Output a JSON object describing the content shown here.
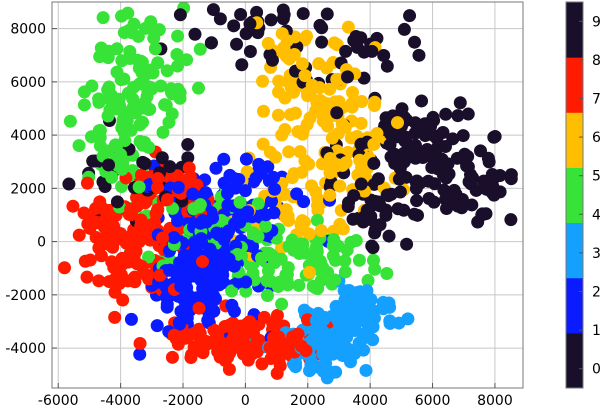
{
  "chart_data": {
    "type": "scatter",
    "title": "",
    "xlabel": "",
    "ylabel": "",
    "xlim": [
      -6200,
      8900
    ],
    "ylim": [
      -5500,
      9000
    ],
    "x_ticks": [
      -6000,
      -4000,
      -2000,
      0,
      2000,
      4000,
      6000,
      8000
    ],
    "y_ticks": [
      -4000,
      -2000,
      0,
      2000,
      4000,
      6000,
      8000
    ],
    "x_tick_labels": [
      "-6000",
      "-4000",
      "-2000",
      "0",
      "2000",
      "4000",
      "6000",
      "8000"
    ],
    "y_tick_labels": [
      "-4000",
      "-2000",
      "0",
      "2000",
      "4000",
      "6000",
      "8000"
    ],
    "grid": true,
    "colorbar": {
      "labels": [
        "0",
        "1",
        "2",
        "3",
        "4",
        "5",
        "6",
        "7",
        "8",
        "9"
      ],
      "colors": [
        "#1a0f2b",
        "#1a0f2b",
        "#0a1cff",
        "#0a1cff",
        "#14a0ff",
        "#14a0ff",
        "#37e337",
        "#37e337",
        "#ffbf00",
        "#ffbf00",
        "#ff1a00",
        "#ff1a00",
        "#1a0f2b",
        "#1a0f2b"
      ],
      "segments": [
        "#1a0f2b",
        "#0a1cff",
        "#14a0ff",
        "#37e337",
        "#ffbf00",
        "#ff1a00",
        "#1a0f2b"
      ]
    },
    "series": [
      {
        "label": "0",
        "color": "#1a0f2b",
        "centers": [
          [
            6200,
            2600
          ],
          [
            5000,
            3400
          ],
          [
            -3600,
            2300
          ],
          [
            3300,
            7200
          ],
          [
            -100,
            8000
          ]
        ],
        "spread": [
          1200,
          900
        ],
        "count": 170
      },
      {
        "label": "1",
        "color": "#0a1cff",
        "centers": [
          [
            -1200,
            -1300
          ],
          [
            -1500,
            1000
          ],
          [
            200,
            1800
          ]
        ],
        "spread": [
          900,
          900
        ],
        "count": 150
      },
      {
        "label": "2",
        "color": "#0a1cff",
        "centers": [
          [
            -1800,
            -2200
          ],
          [
            -1000,
            -300
          ]
        ],
        "spread": [
          700,
          800
        ],
        "count": 140
      },
      {
        "label": "3",
        "color": "#14a0ff",
        "centers": [
          [
            3000,
            -3300
          ],
          [
            3600,
            -2600
          ],
          [
            2200,
            -4000
          ]
        ],
        "spread": [
          700,
          500
        ],
        "count": 150
      },
      {
        "label": "4",
        "color": "#37e337",
        "centers": [
          [
            800,
            -800
          ],
          [
            2400,
            -700
          ],
          [
            -1200,
            600
          ]
        ],
        "spread": [
          1000,
          800
        ],
        "count": 140
      },
      {
        "label": "5",
        "color": "#37e337",
        "centers": [
          [
            -3800,
            5200
          ],
          [
            -4200,
            3000
          ],
          [
            -3100,
            6800
          ]
        ],
        "spread": [
          700,
          1100
        ],
        "count": 150
      },
      {
        "label": "6",
        "color": "#ffbf00",
        "centers": [
          [
            2600,
            4800
          ],
          [
            3500,
            3000
          ],
          [
            1800,
            6200
          ],
          [
            1600,
            1200
          ]
        ],
        "spread": [
          900,
          900
        ],
        "count": 190
      },
      {
        "label": "7",
        "color": "#ff1a00",
        "centers": [
          [
            -4300,
            400
          ],
          [
            -3300,
            -500
          ],
          [
            -2600,
            1600
          ]
        ],
        "spread": [
          700,
          800
        ],
        "count": 160
      },
      {
        "label": "8",
        "color": "#ff1a00",
        "centers": [
          [
            -300,
            -3500
          ],
          [
            1300,
            -4100
          ],
          [
            -1400,
            -3800
          ]
        ],
        "spread": [
          800,
          400
        ],
        "count": 130
      },
      {
        "label": "9",
        "color": "#1a0f2b",
        "centers": [
          [
            7200,
            2100
          ],
          [
            4000,
            1400
          ],
          [
            5600,
            4200
          ]
        ],
        "spread": [
          700,
          700
        ],
        "count": 110
      }
    ]
  }
}
